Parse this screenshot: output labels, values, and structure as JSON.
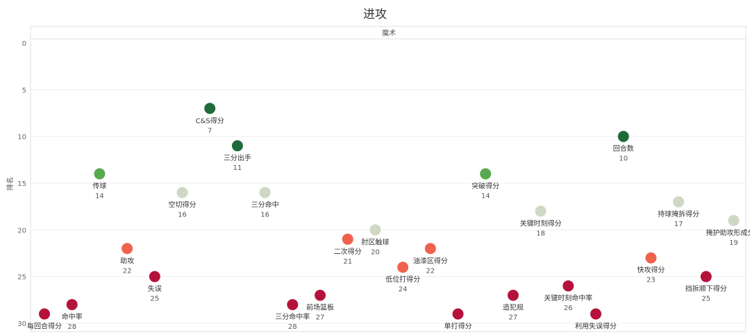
{
  "chart_data": {
    "type": "scatter",
    "title": "进攻",
    "facet": "魔术",
    "ylabel": "排名",
    "ylim": [
      0,
      30
    ],
    "y_reversed": true,
    "yticks": [
      0,
      5,
      10,
      15,
      20,
      25,
      30
    ],
    "grid": true,
    "colors": {
      "dark_green": "#1f6b3a",
      "green": "#5aa84f",
      "light_grey": "#cfd8c5",
      "salmon": "#f0624d",
      "crimson": "#b5123b"
    },
    "points": [
      {
        "label": "每回合得分",
        "value": 29,
        "color": "#b5123b"
      },
      {
        "label": "命中率",
        "value": 28,
        "color": "#b5123b"
      },
      {
        "label": "传球",
        "value": 14,
        "color": "#5aa84f"
      },
      {
        "label": "助攻",
        "value": 22,
        "color": "#f0624d"
      },
      {
        "label": "失误",
        "value": 25,
        "color": "#b5123b"
      },
      {
        "label": "空切得分",
        "value": 16,
        "color": "#cfd8c5"
      },
      {
        "label": "C&S得分",
        "value": 7,
        "color": "#1f6b3a"
      },
      {
        "label": "三分出手",
        "value": 11,
        "color": "#1f6b3a"
      },
      {
        "label": "三分命中",
        "value": 16,
        "color": "#cfd8c5"
      },
      {
        "label": "三分命中率",
        "value": 28,
        "color": "#b5123b"
      },
      {
        "label": "前场篮板",
        "value": 27,
        "color": "#b5123b"
      },
      {
        "label": "二次得分",
        "value": 21,
        "color": "#f0624d"
      },
      {
        "label": "肘区触球",
        "value": 20,
        "color": "#cfd8c5"
      },
      {
        "label": "低位打得分",
        "value": 24,
        "color": "#f0624d"
      },
      {
        "label": "油漆区得分",
        "value": 22,
        "color": "#f0624d"
      },
      {
        "label": "单打得分",
        "value": 29,
        "color": "#b5123b"
      },
      {
        "label": "突破得分",
        "value": 14,
        "color": "#5aa84f"
      },
      {
        "label": "造犯规",
        "value": 27,
        "color": "#b5123b"
      },
      {
        "label": "关键时刻得分",
        "value": 18,
        "color": "#cfd8c5"
      },
      {
        "label": "关键时刻命中率",
        "value": 26,
        "color": "#b5123b"
      },
      {
        "label": "利用失误得分",
        "value": 29,
        "color": "#b5123b"
      },
      {
        "label": "回合数",
        "value": 10,
        "color": "#1f6b3a"
      },
      {
        "label": "快攻得分",
        "value": 23,
        "color": "#f0624d"
      },
      {
        "label": "持球掩拆得分",
        "value": 17,
        "color": "#cfd8c5"
      },
      {
        "label": "挡拆顺下得分",
        "value": 25,
        "color": "#b5123b"
      },
      {
        "label": "掩护助攻形成分数",
        "value": 19,
        "color": "#cfd8c5"
      }
    ]
  }
}
